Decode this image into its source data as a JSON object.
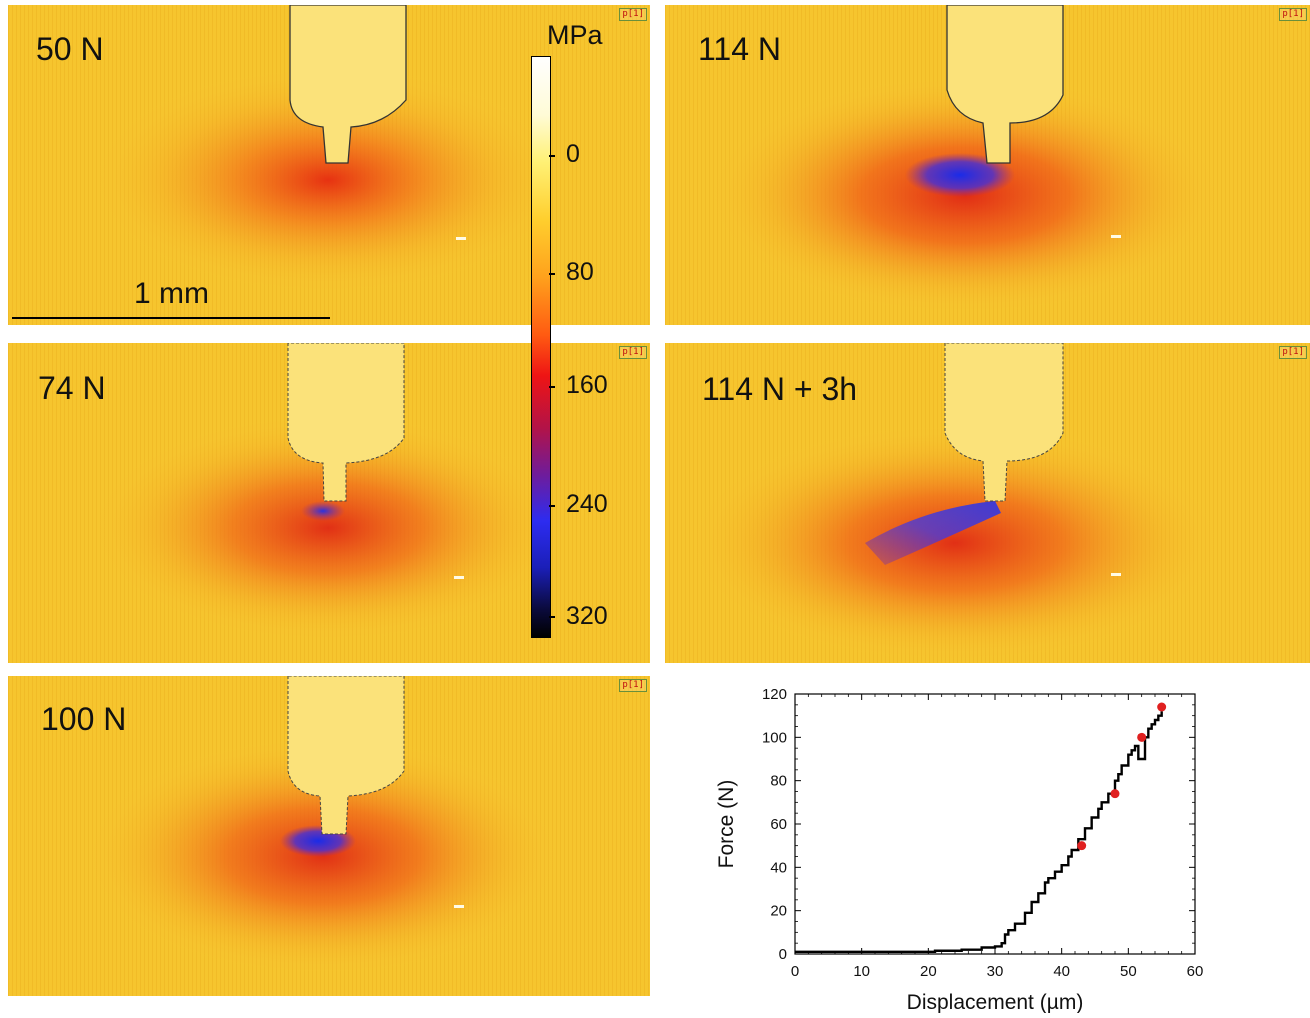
{
  "panels": [
    {
      "label": "50 N",
      "tag": "p[1]"
    },
    {
      "label": "114 N",
      "tag": "p[1]"
    },
    {
      "label": "74 N",
      "tag": "p[1]"
    },
    {
      "label": "114 N + 3h",
      "tag": "p[1]"
    },
    {
      "label": "100 N",
      "tag": "p[1]"
    }
  ],
  "scalebar": {
    "label": "1 mm"
  },
  "colorbar": {
    "unit": "MPa",
    "ticks": [
      "0",
      "80",
      "160",
      "240",
      "320"
    ]
  },
  "chart_data": {
    "type": "line",
    "xlabel": "Displacement (µm)",
    "ylabel": "Force (N)",
    "xlim": [
      0,
      60
    ],
    "ylim": [
      0,
      120
    ],
    "xticks": [
      0,
      10,
      20,
      30,
      40,
      50,
      60
    ],
    "yticks": [
      0,
      20,
      40,
      60,
      80,
      100,
      120
    ],
    "grid": false,
    "series": [
      {
        "color": "#000000",
        "x": [
          0,
          10,
          20,
          21,
          25,
          28,
          30,
          31,
          31.5,
          32,
          33,
          34,
          34.5,
          35,
          35.5,
          36,
          36.5,
          37,
          37.5,
          38,
          38.5,
          39,
          39.5,
          40,
          41,
          41.5,
          42,
          42.5,
          43,
          43.5,
          44,
          44.5,
          45,
          45.5,
          46,
          46.5,
          47,
          47.5,
          48,
          48.5,
          49,
          49.5,
          50,
          50.5,
          51,
          51.5,
          52,
          52.5,
          53,
          53.5,
          54,
          54.5,
          55
        ],
        "y": [
          1,
          1,
          1,
          1.5,
          2,
          3,
          3.5,
          5,
          9,
          11,
          14,
          14,
          19,
          19,
          24,
          24,
          28,
          28,
          33,
          35,
          35,
          38,
          38,
          41,
          45,
          48,
          48,
          53,
          53,
          58,
          58,
          63,
          63,
          67,
          70,
          70,
          74,
          74,
          80,
          83,
          87,
          87,
          92,
          94,
          96,
          90,
          90,
          100,
          104,
          106,
          108,
          110,
          112
        ]
      },
      {
        "color": "#e02020",
        "marker": "circle",
        "x": [
          43,
          48,
          52,
          55
        ],
        "y": [
          50,
          74,
          100,
          114
        ]
      }
    ]
  }
}
